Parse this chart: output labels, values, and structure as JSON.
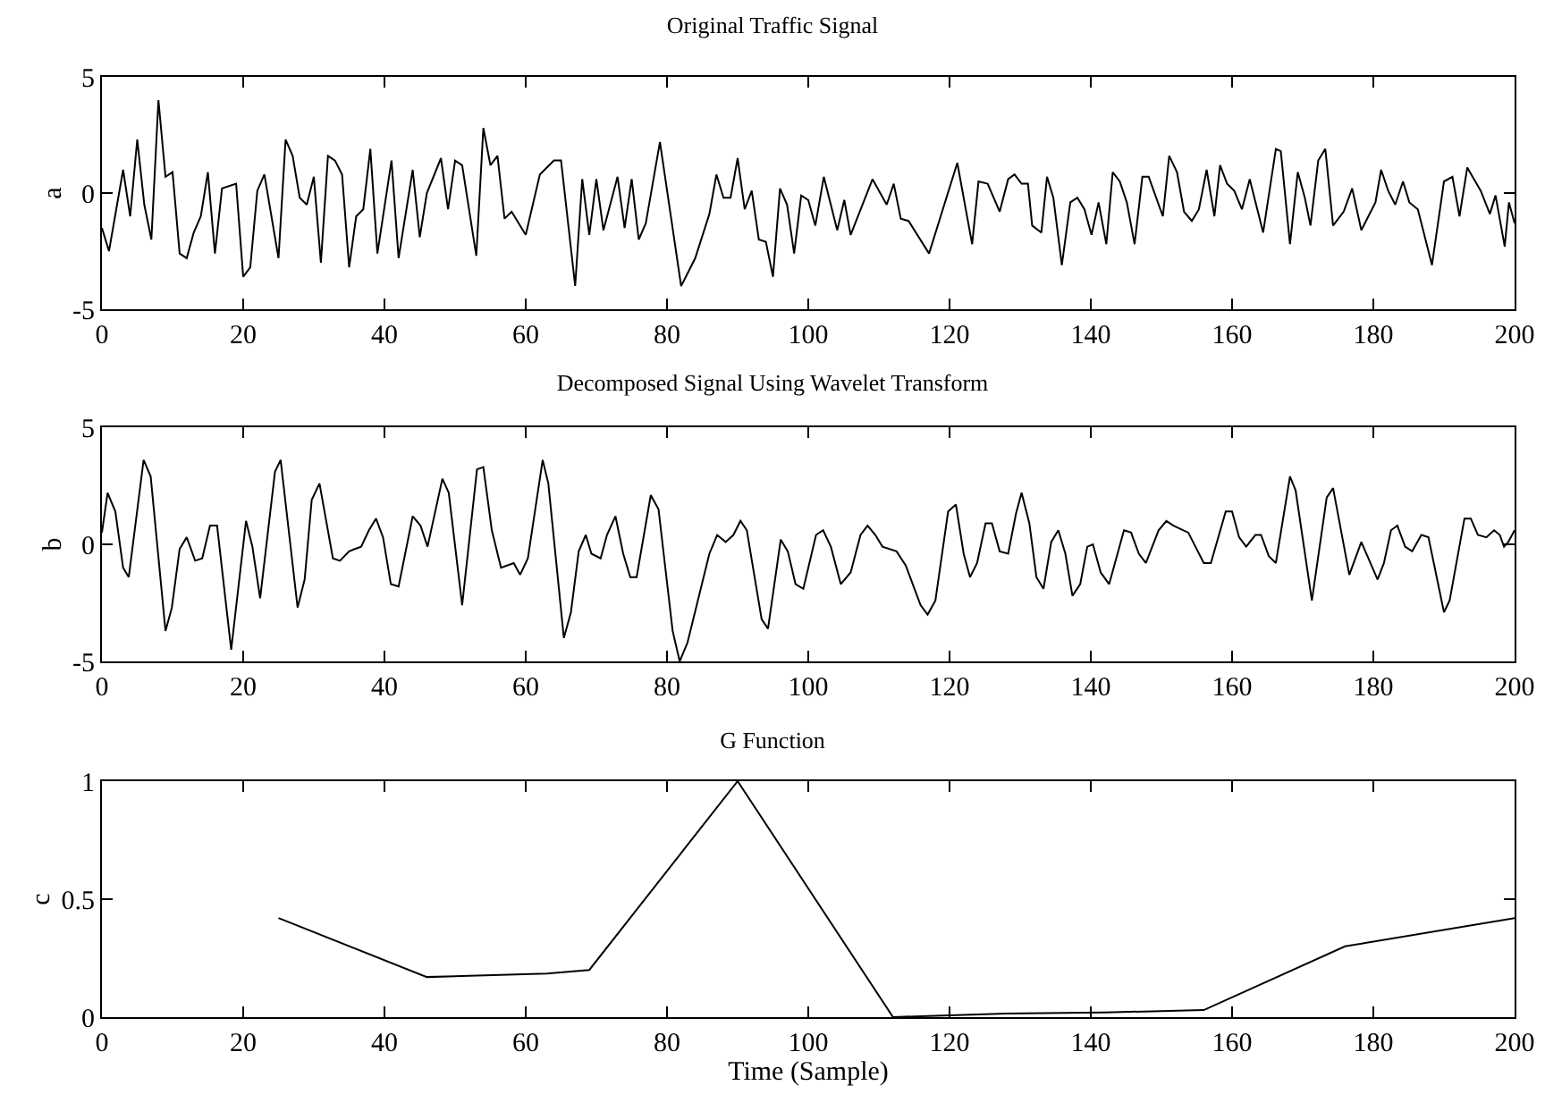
{
  "chart_data": [
    {
      "type": "line",
      "title": "Original Traffic Signal",
      "ylabel": "a",
      "color": "#000000",
      "xlim": [
        0,
        200
      ],
      "ylim": [
        -5,
        5
      ],
      "xticks": [
        0,
        20,
        40,
        60,
        80,
        100,
        120,
        140,
        160,
        180,
        200
      ],
      "yticks": [
        -5,
        0,
        5
      ],
      "x": [
        0,
        1,
        3,
        4,
        5,
        6,
        7,
        8,
        9,
        10,
        11,
        12,
        13,
        14,
        15,
        16,
        17,
        19,
        20,
        21,
        22,
        23,
        25,
        26,
        27,
        28,
        29,
        30,
        31,
        32,
        33,
        34,
        35,
        36,
        37,
        38,
        39,
        41,
        42,
        44,
        45,
        46,
        48,
        49,
        50,
        51,
        53,
        54,
        55,
        56,
        57,
        58,
        60,
        62,
        64,
        65,
        67,
        68,
        69,
        70,
        71,
        73,
        74,
        75,
        76,
        77,
        79,
        82,
        84,
        86,
        87,
        88,
        89,
        90,
        91,
        92,
        93,
        94,
        95,
        96,
        97,
        98,
        99,
        100,
        101,
        102.2,
        104.1,
        105.1,
        106,
        109.1,
        111.1,
        112.1,
        113.1,
        114.2,
        117.1,
        121.1,
        123.2,
        124.1,
        125.4,
        127.1,
        128.3,
        129.2,
        130.2,
        131.1,
        131.7,
        133,
        133.8,
        134.7,
        135.9,
        137.1,
        138.1,
        139.1,
        140.1,
        141.1,
        142.2,
        143.1,
        144.1,
        145.1,
        146.2,
        147.3,
        148.2,
        150.2,
        151.1,
        152.2,
        153.2,
        154.3,
        155.3,
        156.4,
        157.5,
        158.3,
        159.3,
        160.3,
        161.4,
        162.5,
        164.4,
        166.2,
        166.9,
        168.2,
        169.3,
        170.3,
        171.1,
        172.2,
        173.2,
        174.3,
        175.8,
        177,
        178.3,
        180.3,
        181.1,
        182.1,
        183.1,
        184.2,
        185.1,
        186.3,
        188.3,
        190,
        191.2,
        192.2,
        193.3,
        195.2,
        196.5,
        197.3,
        198.6,
        199.2,
        200
      ],
      "values": [
        -1.5,
        -2.5,
        1,
        -1,
        2.3,
        -0.5,
        -2,
        4,
        0.7,
        0.9,
        -2.6,
        -2.8,
        -1.7,
        -1,
        0.9,
        -2.6,
        0.2,
        0.4,
        -3.6,
        -3.2,
        0.1,
        0.8,
        -2.8,
        2.3,
        1.6,
        -0.2,
        -0.5,
        0.7,
        -3,
        1.6,
        1.4,
        0.8,
        -3.2,
        -1,
        -0.7,
        1.9,
        -2.6,
        1.4,
        -2.8,
        1,
        -1.9,
        0,
        1.5,
        -0.7,
        1.4,
        1.2,
        -2.7,
        2.8,
        1.2,
        1.6,
        -1.1,
        -0.8,
        -1.8,
        0.8,
        1.4,
        1.4,
        -4,
        0.6,
        -1.8,
        0.6,
        -1.6,
        0.7,
        -1.5,
        0.6,
        -2,
        -1.3,
        2.2,
        -4,
        -2.8,
        -0.9,
        0.8,
        -0.2,
        -0.2,
        1.5,
        -0.7,
        0.1,
        -2,
        -2.1,
        -3.6,
        0.2,
        -0.5,
        -2.6,
        -0.1,
        -0.3,
        -1.4,
        0.7,
        -1.6,
        -0.3,
        -1.8,
        0.6,
        -0.5,
        0.4,
        -1.1,
        -1.2,
        -2.6,
        1.3,
        -2.2,
        0.5,
        0.4,
        -0.8,
        0.6,
        0.8,
        0.4,
        0.4,
        -1.4,
        -1.7,
        0.7,
        -0.2,
        -3.1,
        -0.4,
        -0.2,
        -0.7,
        -1.8,
        -0.4,
        -2.2,
        0.9,
        0.5,
        -0.4,
        -2.2,
        0.7,
        0.7,
        -1,
        1.6,
        0.9,
        -0.8,
        -1.2,
        -0.7,
        1,
        -1,
        1.2,
        0.4,
        0.1,
        -0.7,
        0.6,
        -1.7,
        1.9,
        1.8,
        -2.2,
        0.9,
        -0.2,
        -1.4,
        1.4,
        1.9,
        -1.4,
        -0.8,
        0.2,
        -1.6,
        -0.4,
        1,
        0.1,
        -0.5,
        0.5,
        -0.4,
        -0.7,
        -3.1,
        0.5,
        0.7,
        -1,
        1.1,
        0.1,
        -0.9,
        -0.1,
        -2.3,
        -0.4,
        -1.3
      ]
    },
    {
      "type": "line",
      "title": "Decomposed Signal Using Wavelet Transform",
      "ylabel": "b",
      "color": "#000000",
      "xlim": [
        0,
        200
      ],
      "ylim": [
        -5,
        5
      ],
      "xticks": [
        0,
        20,
        40,
        60,
        80,
        100,
        120,
        140,
        160,
        180,
        200
      ],
      "yticks": [
        -5,
        0,
        5
      ],
      "x": [
        0,
        0.8,
        1.9,
        3,
        3.8,
        5.9,
        6.9,
        9,
        9.9,
        11,
        12,
        13.2,
        14.2,
        15.3,
        16.3,
        18.3,
        20.4,
        21.3,
        22.4,
        24.5,
        25.3,
        27.7,
        28.7,
        29.7,
        30.8,
        32.7,
        33.7,
        35,
        35.8,
        36.7,
        37.8,
        38.8,
        39.8,
        40.9,
        42,
        44,
        45.1,
        46.1,
        48.2,
        49.1,
        51,
        53.1,
        54,
        55.2,
        56.5,
        58.3,
        59.2,
        60.3,
        62.4,
        63.2,
        65.4,
        66.4,
        67.5,
        68.5,
        69.3,
        70.6,
        71.5,
        72.7,
        73.8,
        74.8,
        75.7,
        77.7,
        78.8,
        80.8,
        81.8,
        82.9,
        86,
        87.1,
        88.3,
        89.4,
        90.4,
        91.3,
        93.4,
        94.3,
        96.1,
        97.1,
        98.2,
        99.3,
        101.1,
        102.1,
        103.2,
        104.6,
        106,
        107.4,
        108.4,
        109.5,
        110.5,
        112.5,
        113.8,
        115.9,
        116.9,
        118,
        119.8,
        120.9,
        122,
        122.9,
        123.9,
        125.1,
        126,
        127.1,
        128.3,
        129.4,
        130.2,
        131.3,
        132.3,
        133.3,
        134.4,
        135.4,
        136.4,
        137.4,
        138.5,
        139.5,
        140.3,
        141.4,
        142.6,
        144.7,
        145.7,
        146.8,
        147.8,
        149.6,
        150.7,
        151.7,
        153.8,
        156,
        157,
        159.1,
        160,
        161,
        162,
        163.3,
        164.1,
        165.2,
        166.2,
        168.2,
        169,
        171.3,
        173.4,
        174.3,
        176.6,
        178.3,
        180.6,
        181.5,
        182.5,
        183.4,
        184.5,
        185.5,
        186.8,
        187.8,
        190,
        190.8,
        192.9,
        193.8,
        194.8,
        196,
        197.1,
        197.9,
        198.5,
        199.1,
        200
      ],
      "values": [
        0.5,
        2.2,
        1.4,
        -1,
        -1.4,
        3.6,
        2.9,
        -3.7,
        -2.7,
        -0.2,
        0.3,
        -0.7,
        -0.6,
        0.8,
        0.8,
        -4.5,
        1,
        -0.1,
        -2.3,
        3.1,
        3.6,
        -2.7,
        -1.5,
        1.9,
        2.6,
        -0.6,
        -0.7,
        -0.3,
        -0.2,
        -0.1,
        0.6,
        1.1,
        0.3,
        -1.7,
        -1.8,
        1.2,
        0.8,
        -0.1,
        2.8,
        2.2,
        -2.6,
        3.2,
        3.3,
        0.6,
        -1,
        -0.8,
        -1.3,
        -0.6,
        3.6,
        2.6,
        -4,
        -2.9,
        -0.3,
        0.4,
        -0.4,
        -0.6,
        0.4,
        1.2,
        -0.4,
        -1.4,
        -1.4,
        2.1,
        1.5,
        -3.7,
        -5,
        -4.2,
        -0.4,
        0.4,
        0.1,
        0.4,
        1,
        0.6,
        -3.2,
        -3.6,
        0.2,
        -0.3,
        -1.7,
        -1.9,
        0.4,
        0.6,
        -0.1,
        -1.7,
        -1.2,
        0.4,
        0.8,
        0.4,
        -0.1,
        -0.3,
        -0.9,
        -2.6,
        -3,
        -2.4,
        1.4,
        1.7,
        -0.4,
        -1.4,
        -0.8,
        0.9,
        0.9,
        -0.3,
        -0.4,
        1.3,
        2.2,
        0.9,
        -1.4,
        -1.9,
        0.1,
        0.6,
        -0.4,
        -2.2,
        -1.7,
        -0.1,
        0,
        -1.2,
        -1.7,
        0.6,
        0.5,
        -0.4,
        -0.8,
        0.6,
        1,
        0.8,
        0.5,
        -0.8,
        -0.8,
        1.4,
        1.4,
        0.3,
        -0.1,
        0.4,
        0.4,
        -0.5,
        -0.8,
        2.9,
        2.3,
        -2.4,
        2,
        2.4,
        -1.3,
        0.1,
        -1.5,
        -0.8,
        0.6,
        0.8,
        -0.1,
        -0.3,
        0.4,
        0.3,
        -2.9,
        -2.4,
        1.1,
        1.1,
        0.4,
        0.3,
        0.6,
        0.4,
        -0.1,
        0.1,
        0.6
      ]
    },
    {
      "type": "line",
      "title": "G Function",
      "ylabel": "c",
      "xlabel": "Time (Sample)",
      "color": "#000000",
      "xlim": [
        0,
        200
      ],
      "ylim": [
        0,
        1
      ],
      "xticks": [
        0,
        20,
        40,
        60,
        80,
        100,
        120,
        140,
        160,
        180,
        200
      ],
      "yticks": [
        0,
        0.5,
        1
      ],
      "x": [
        25,
        46,
        52,
        63,
        69,
        90,
        112,
        117,
        128,
        142,
        156,
        176,
        200
      ],
      "values": [
        0.42,
        0.17,
        0.175,
        0.185,
        0.2,
        1,
        0,
        0.005,
        0.015,
        0.02,
        0.03,
        0.3,
        0.42
      ]
    }
  ]
}
